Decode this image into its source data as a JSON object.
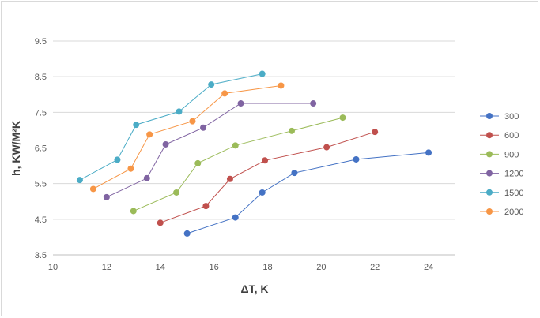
{
  "chart_data": {
    "type": "scatter",
    "xlabel": "ΔT, K",
    "ylabel": "h, KW/M²K",
    "xlim": [
      10,
      25
    ],
    "ylim": [
      3.5,
      9.5
    ],
    "x_ticks": [
      10,
      12,
      14,
      16,
      18,
      20,
      22,
      24
    ],
    "y_ticks": [
      3.5,
      4.5,
      5.5,
      6.5,
      7.5,
      8.5,
      9.5
    ],
    "x_tick_labels": [
      "10",
      "12",
      "14",
      "16",
      "18",
      "20",
      "22",
      "24"
    ],
    "y_tick_labels": [
      "3.5",
      "4.5",
      "5.5",
      "6.5",
      "7.5",
      "8.5",
      "9.5"
    ],
    "grid": "horizontal",
    "legend_position": "right",
    "series": [
      {
        "name": "300",
        "color": "#4472c4",
        "x": [
          15.0,
          16.8,
          17.8,
          19.0,
          21.3,
          24.0
        ],
        "y": [
          4.1,
          4.55,
          5.25,
          5.8,
          6.18,
          6.37
        ]
      },
      {
        "name": "600",
        "color": "#c0504d",
        "x": [
          14.0,
          15.7,
          16.6,
          17.9,
          20.2,
          22.0
        ],
        "y": [
          4.4,
          4.87,
          5.63,
          6.15,
          6.52,
          6.95
        ]
      },
      {
        "name": "900",
        "color": "#9bbb59",
        "x": [
          13.0,
          14.6,
          15.4,
          16.8,
          18.9,
          20.8
        ],
        "y": [
          4.73,
          5.25,
          6.07,
          6.57,
          6.98,
          7.35
        ]
      },
      {
        "name": "1200",
        "color": "#8064a2",
        "x": [
          12.0,
          13.5,
          14.2,
          15.6,
          17.0,
          19.7
        ],
        "y": [
          5.12,
          5.65,
          6.6,
          7.07,
          7.75,
          7.75
        ]
      },
      {
        "name": "1500",
        "color": "#4bacc6",
        "x": [
          11.0,
          12.4,
          13.1,
          14.7,
          15.9,
          17.8
        ],
        "y": [
          5.6,
          6.17,
          7.15,
          7.52,
          8.28,
          8.58
        ]
      },
      {
        "name": "2000",
        "color": "#f79646",
        "x": [
          11.5,
          12.9,
          13.6,
          15.2,
          16.4,
          18.5
        ],
        "y": [
          5.35,
          5.92,
          6.88,
          7.25,
          8.03,
          8.25
        ]
      }
    ]
  }
}
